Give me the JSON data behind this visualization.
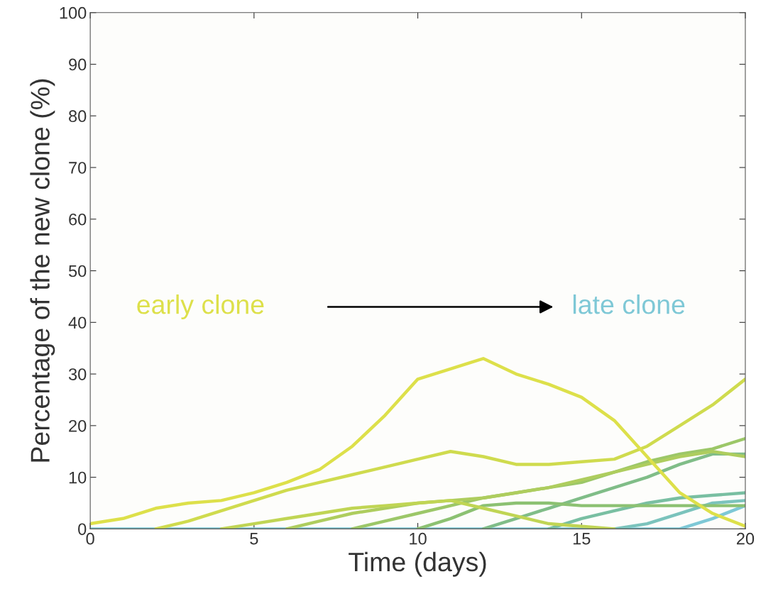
{
  "chart_data": {
    "type": "line",
    "xlabel": "Time (days)",
    "ylabel": "Percentage of the new clone (%)",
    "x": [
      0,
      1,
      2,
      3,
      4,
      5,
      6,
      7,
      8,
      9,
      10,
      11,
      12,
      13,
      14,
      15,
      16,
      17,
      18,
      19,
      20
    ],
    "series": [
      {
        "color": "#dde04a",
        "values": [
          1,
          2,
          4,
          5,
          5.5,
          7,
          9,
          11.5,
          16,
          22,
          29,
          31,
          33,
          30,
          28,
          25.5,
          21,
          14,
          7,
          3,
          0.5
        ]
      },
      {
        "color": "#cfdb4e",
        "values": [
          null,
          null,
          0,
          1.5,
          3.5,
          5.5,
          7.5,
          9,
          10.5,
          12,
          13.5,
          15,
          14,
          12.5,
          12.5,
          13,
          13.5,
          16,
          20,
          24,
          29
        ]
      },
      {
        "color": "#c0d554",
        "values": [
          null,
          null,
          null,
          null,
          0,
          1,
          2,
          3,
          4,
          4.5,
          5,
          5.5,
          4,
          2.5,
          1,
          0.5,
          0,
          null,
          null,
          null,
          null
        ]
      },
      {
        "color": "#aecd5e",
        "values": [
          null,
          null,
          null,
          null,
          null,
          null,
          0,
          1.5,
          3,
          4,
          5,
          5.5,
          6,
          7,
          8,
          9.5,
          11,
          12.5,
          14,
          15,
          14
        ]
      },
      {
        "color": "#9cc768",
        "values": [
          null,
          null,
          null,
          null,
          null,
          null,
          null,
          null,
          0,
          1.5,
          3,
          4.5,
          6,
          7,
          8,
          9,
          11,
          13,
          14.5,
          15.5,
          17.5
        ]
      },
      {
        "color": "#8cc172",
        "values": [
          null,
          null,
          null,
          null,
          null,
          null,
          null,
          null,
          null,
          null,
          0,
          2,
          4.5,
          5,
          5,
          4.5,
          4.5,
          4.5,
          4.5,
          4.5,
          4.5
        ]
      },
      {
        "color": "#80bd88",
        "values": [
          null,
          null,
          null,
          null,
          null,
          null,
          null,
          null,
          null,
          null,
          null,
          null,
          0,
          2,
          4,
          6,
          8,
          10,
          12.5,
          14.5,
          14.5
        ]
      },
      {
        "color": "#79bfa2",
        "values": [
          null,
          null,
          null,
          null,
          null,
          null,
          null,
          null,
          null,
          null,
          null,
          null,
          null,
          null,
          0,
          2,
          3.5,
          5,
          6,
          6.5,
          7
        ]
      },
      {
        "color": "#7bc3bc",
        "values": [
          null,
          null,
          null,
          null,
          null,
          null,
          null,
          null,
          null,
          null,
          null,
          null,
          null,
          null,
          null,
          null,
          0,
          1,
          3,
          5,
          5.5
        ]
      },
      {
        "color": "#7ec8d6",
        "values": [
          0,
          0,
          0,
          0,
          0,
          0,
          0,
          0,
          0,
          0,
          0,
          0,
          0,
          0,
          0,
          0,
          0,
          0,
          0,
          2,
          4.5
        ]
      }
    ],
    "annotations": [
      "early clone",
      "late clone"
    ],
    "xlim": [
      0,
      20
    ],
    "xticks": [
      0,
      5,
      10,
      15,
      20
    ],
    "ylim": [
      0,
      100
    ],
    "yticks": [
      0,
      10,
      20,
      30,
      40,
      50,
      60,
      70,
      80,
      90,
      100
    ],
    "grid": false,
    "legend": false,
    "marker": "none",
    "line_style": "solid"
  }
}
